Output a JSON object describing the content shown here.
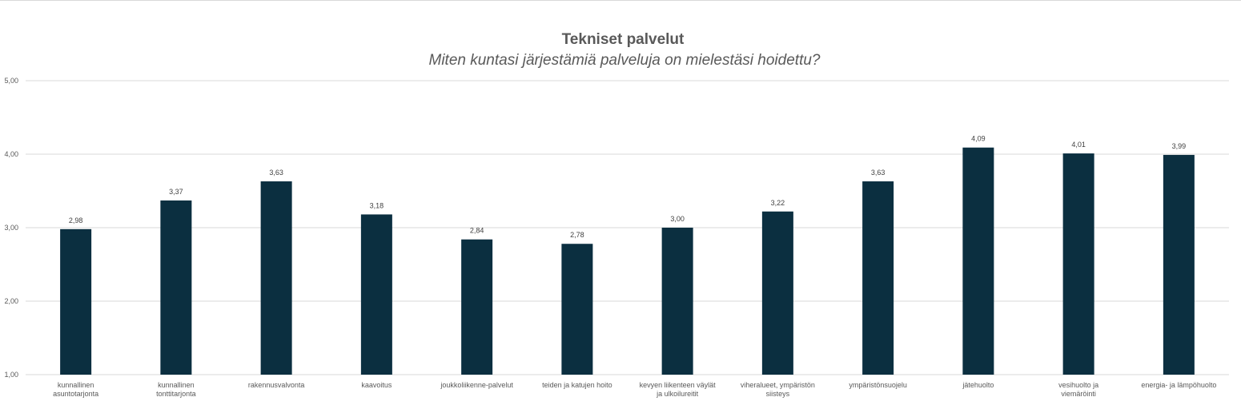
{
  "chart_data": {
    "type": "bar",
    "title": "Tekniset palvelut",
    "subtitle": "Miten kuntasi järjestämiä palveluja on mielestäsi hoidettu?",
    "categories": [
      "kunnallinen asuntotarjonta",
      "kunnallinen tonttitarjonta",
      "rakennusvalvonta",
      "kaavoitus",
      "joukkoliikenne-palvelut",
      "teiden ja katujen hoito",
      "kevyen liikenteen väylät ja ulkoilureitit",
      "viheralueet, ympäristön siisteys",
      "ympäristönsuojelu",
      "jätehuolto",
      "vesihuolto ja viemäröinti",
      "energia- ja lämpöhuolto"
    ],
    "values": [
      2.98,
      3.37,
      3.63,
      3.18,
      2.84,
      2.78,
      3.0,
      3.22,
      3.63,
      4.09,
      4.01,
      3.99
    ],
    "value_labels": [
      "2,98",
      "3,37",
      "3,63",
      "3,18",
      "2,84",
      "2,78",
      "3,00",
      "3,22",
      "3,63",
      "4,09",
      "4,01",
      "3,99"
    ],
    "y_ticks": [
      1,
      2,
      3,
      4,
      5
    ],
    "y_tick_labels": [
      "1,00",
      "2,00",
      "3,00",
      "4,00",
      "5,00"
    ],
    "ylim": [
      1,
      5
    ],
    "xlabel": "",
    "ylabel": "",
    "grid": true,
    "bar_color": "#0b2f40",
    "legend": "none"
  }
}
